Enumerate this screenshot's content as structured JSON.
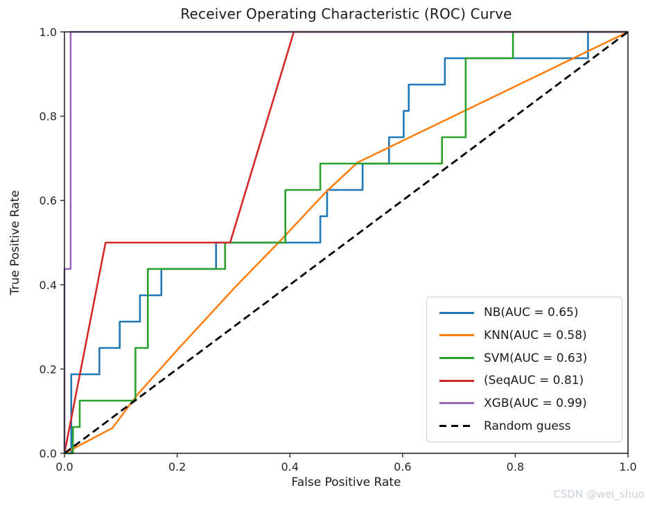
{
  "figure": {
    "watermark": "CSDN @wei_shuo",
    "background_color": "#ffffff",
    "axis_color": "#262626",
    "watermark_color": "#c9ced8"
  },
  "chart_data": {
    "type": "line",
    "title": "Receiver Operating Characteristic (ROC) Curve",
    "xlabel": "False Positive Rate",
    "ylabel": "True Positive Rate",
    "xlim": [
      0.0,
      1.0
    ],
    "ylim": [
      0.0,
      1.0
    ],
    "x_ticks": [
      "0.0",
      "0.2",
      "0.4",
      "0.6",
      "0.8",
      "1.0"
    ],
    "y_ticks": [
      "0.0",
      "0.2",
      "0.4",
      "0.6",
      "0.8",
      "1.0"
    ],
    "grid": false,
    "legend_position": "lower right",
    "series": [
      {
        "name": "nb",
        "label": "NB(AUC = 0.65)",
        "auc": 0.65,
        "color": "#1f77b4",
        "dashed": false,
        "points": [
          [
            0,
            0
          ],
          [
            0.012,
            0
          ],
          [
            0.012,
            0.1875
          ],
          [
            0.062,
            0.1875
          ],
          [
            0.062,
            0.25
          ],
          [
            0.098,
            0.25
          ],
          [
            0.098,
            0.3125
          ],
          [
            0.134,
            0.3125
          ],
          [
            0.134,
            0.375
          ],
          [
            0.172,
            0.375
          ],
          [
            0.172,
            0.4375
          ],
          [
            0.269,
            0.4375
          ],
          [
            0.269,
            0.5
          ],
          [
            0.454,
            0.5
          ],
          [
            0.454,
            0.5625
          ],
          [
            0.466,
            0.5625
          ],
          [
            0.466,
            0.625
          ],
          [
            0.529,
            0.625
          ],
          [
            0.529,
            0.6875
          ],
          [
            0.576,
            0.6875
          ],
          [
            0.576,
            0.75
          ],
          [
            0.602,
            0.75
          ],
          [
            0.602,
            0.8125
          ],
          [
            0.611,
            0.8125
          ],
          [
            0.611,
            0.875
          ],
          [
            0.675,
            0.875
          ],
          [
            0.675,
            0.9375
          ],
          [
            0.929,
            0.9375
          ],
          [
            0.929,
            1
          ],
          [
            1,
            1
          ]
        ]
      },
      {
        "name": "knn",
        "label": "KNN(AUC = 0.58)",
        "auc": 0.58,
        "color": "#ff7f0e",
        "dashed": false,
        "points": [
          [
            0,
            0
          ],
          [
            0.085,
            0.06
          ],
          [
            0.13,
            0.14
          ],
          [
            0.2,
            0.245
          ],
          [
            0.304,
            0.396
          ],
          [
            0.38,
            0.5
          ],
          [
            0.464,
            0.62
          ],
          [
            0.52,
            0.69
          ],
          [
            1,
            1
          ]
        ]
      },
      {
        "name": "svm",
        "label": "SVM(AUC = 0.63)",
        "auc": 0.63,
        "color": "#2ca02c",
        "dashed": false,
        "points": [
          [
            0,
            0
          ],
          [
            0.015,
            0
          ],
          [
            0.015,
            0.0625
          ],
          [
            0.027,
            0.0625
          ],
          [
            0.027,
            0.125
          ],
          [
            0.126,
            0.125
          ],
          [
            0.126,
            0.25
          ],
          [
            0.148,
            0.25
          ],
          [
            0.148,
            0.4375
          ],
          [
            0.285,
            0.4375
          ],
          [
            0.285,
            0.5
          ],
          [
            0.392,
            0.5
          ],
          [
            0.392,
            0.625
          ],
          [
            0.454,
            0.625
          ],
          [
            0.454,
            0.6875
          ],
          [
            0.67,
            0.6875
          ],
          [
            0.67,
            0.75
          ],
          [
            0.712,
            0.75
          ],
          [
            0.712,
            0.9375
          ],
          [
            0.796,
            0.9375
          ],
          [
            0.796,
            1
          ],
          [
            1,
            1
          ]
        ]
      },
      {
        "name": "seq",
        "label": "(SeqAUC = 0.81)",
        "auc": 0.81,
        "color": "#d62728",
        "dashed": false,
        "points": [
          [
            0,
            0
          ],
          [
            0.073,
            0.5
          ],
          [
            0.294,
            0.5
          ],
          [
            0.407,
            1
          ],
          [
            1,
            1
          ]
        ]
      },
      {
        "name": "xgb",
        "label": "XGB(AUC = 0.99)",
        "auc": 0.99,
        "color": "#9467bd",
        "dashed": false,
        "points": [
          [
            0,
            0
          ],
          [
            0,
            0.4375
          ],
          [
            0.011,
            0.4375
          ],
          [
            0.011,
            1
          ],
          [
            1,
            1
          ]
        ]
      },
      {
        "name": "random-guess",
        "label": "Random guess",
        "color": "#000000",
        "dashed": true,
        "points": [
          [
            0,
            0
          ],
          [
            1,
            1
          ]
        ]
      }
    ]
  }
}
